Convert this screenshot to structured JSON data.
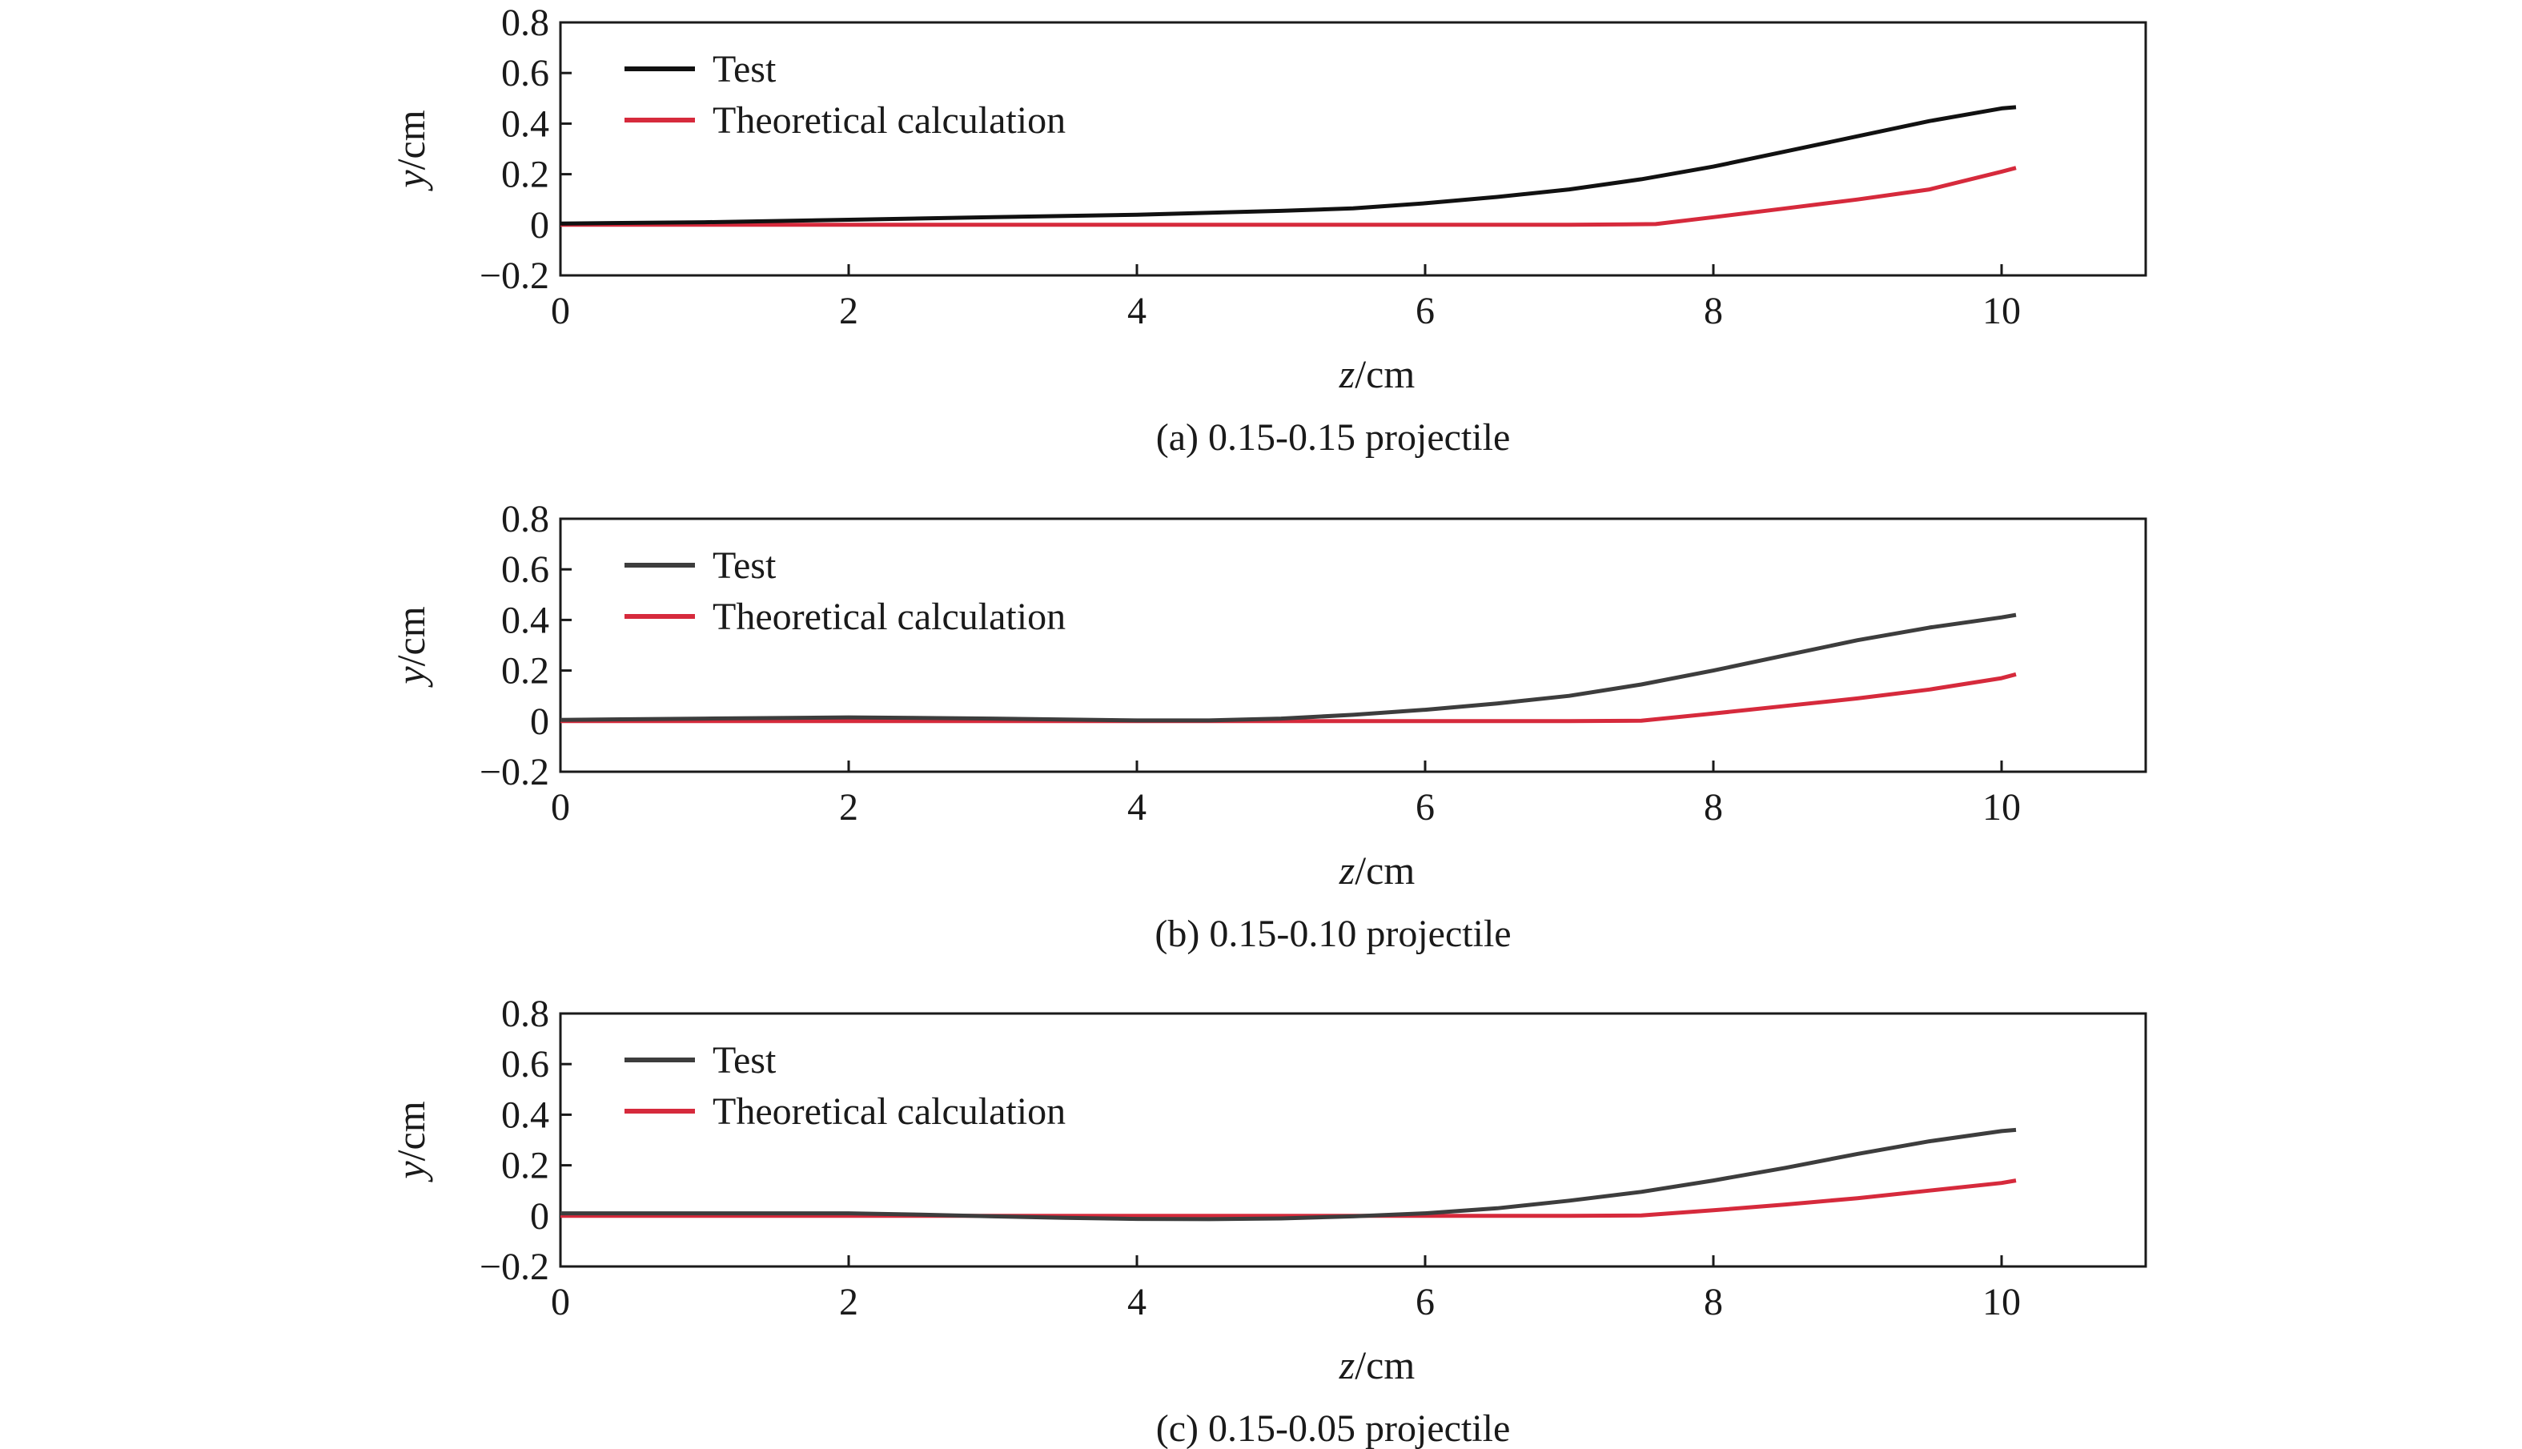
{
  "chart_data": [
    {
      "type": "line",
      "title": "(a) 0.15-0.15 projectile",
      "xlabel": {
        "italic": "z",
        "rest": "/cm"
      },
      "ylabel": {
        "italic": "y",
        "rest": "/cm"
      },
      "xlim": [
        0,
        11
      ],
      "ylim": [
        -0.2,
        0.8
      ],
      "xticks": [
        0,
        2,
        4,
        6,
        8,
        10
      ],
      "yticks": [
        -0.2,
        0,
        0.2,
        0.4,
        0.6,
        0.8
      ],
      "ytick_labels": [
        "−0.2",
        "0",
        "0.2",
        "0.4",
        "0.6",
        "0.8"
      ],
      "legend": "top-left",
      "grid": false,
      "series": [
        {
          "name": "Test",
          "color": "#111111",
          "x": [
            0,
            1,
            2,
            3,
            4,
            5,
            5.5,
            6,
            6.5,
            7,
            7.5,
            8,
            8.5,
            9,
            9.5,
            10,
            10.1
          ],
          "y": [
            0.005,
            0.01,
            0.02,
            0.03,
            0.04,
            0.055,
            0.065,
            0.085,
            0.11,
            0.14,
            0.18,
            0.23,
            0.29,
            0.35,
            0.41,
            0.46,
            0.465
          ]
        },
        {
          "name": "Theoretical calculation",
          "color": "#d62a3c",
          "x": [
            0,
            2,
            4,
            6,
            7,
            7.6,
            8,
            8.5,
            9,
            9.5,
            10,
            10.1
          ],
          "y": [
            0,
            0,
            0,
            0,
            0,
            0.003,
            0.03,
            0.065,
            0.1,
            0.14,
            0.21,
            0.225
          ]
        }
      ]
    },
    {
      "type": "line",
      "title": "(b) 0.15-0.10 projectile",
      "xlabel": {
        "italic": "z",
        "rest": "/cm"
      },
      "ylabel": {
        "italic": "y",
        "rest": "/cm"
      },
      "xlim": [
        0,
        11
      ],
      "ylim": [
        -0.2,
        0.8
      ],
      "xticks": [
        0,
        2,
        4,
        6,
        8,
        10
      ],
      "yticks": [
        -0.2,
        0,
        0.2,
        0.4,
        0.6,
        0.8
      ],
      "ytick_labels": [
        "−0.2",
        "0",
        "0.2",
        "0.4",
        "0.6",
        "0.8"
      ],
      "legend": "top-left",
      "grid": false,
      "series": [
        {
          "name": "Test",
          "color": "#3d3d3d",
          "x": [
            0,
            1,
            2,
            3,
            4,
            4.5,
            5,
            5.5,
            6,
            6.5,
            7,
            7.5,
            8,
            8.5,
            9,
            9.5,
            10,
            10.1
          ],
          "y": [
            0.005,
            0.01,
            0.015,
            0.01,
            0.003,
            0.003,
            0.01,
            0.025,
            0.045,
            0.07,
            0.1,
            0.145,
            0.2,
            0.26,
            0.32,
            0.37,
            0.41,
            0.42
          ]
        },
        {
          "name": "Theoretical calculation",
          "color": "#d62a3c",
          "x": [
            0,
            2,
            4,
            6,
            7,
            7.5,
            8,
            8.5,
            9,
            9.5,
            10,
            10.1
          ],
          "y": [
            0,
            0,
            0,
            0,
            0,
            0.002,
            0.03,
            0.06,
            0.09,
            0.125,
            0.17,
            0.185
          ]
        }
      ]
    },
    {
      "type": "line",
      "title": "(c) 0.15-0.05 projectile",
      "xlabel": {
        "italic": "z",
        "rest": "/cm"
      },
      "ylabel": {
        "italic": "y",
        "rest": "/cm"
      },
      "xlim": [
        0,
        11
      ],
      "ylim": [
        -0.2,
        0.8
      ],
      "xticks": [
        0,
        2,
        4,
        6,
        8,
        10
      ],
      "yticks": [
        -0.2,
        0,
        0.2,
        0.4,
        0.6,
        0.8
      ],
      "ytick_labels": [
        "−0.2",
        "0",
        "0.2",
        "0.4",
        "0.6",
        "0.8"
      ],
      "legend": "top-left",
      "grid": false,
      "series": [
        {
          "name": "Test",
          "color": "#3d3d3d",
          "x": [
            0,
            1,
            2,
            2.5,
            3,
            3.5,
            4,
            4.5,
            5,
            5.5,
            6,
            6.5,
            7,
            7.5,
            8,
            8.5,
            9,
            9.5,
            10,
            10.1
          ],
          "y": [
            0.01,
            0.01,
            0.01,
            0.005,
            -0.002,
            -0.008,
            -0.012,
            -0.013,
            -0.01,
            -0.002,
            0.01,
            0.03,
            0.06,
            0.095,
            0.14,
            0.19,
            0.245,
            0.295,
            0.335,
            0.34
          ]
        },
        {
          "name": "Theoretical calculation",
          "color": "#d62a3c",
          "x": [
            0,
            2,
            4,
            6,
            7,
            7.5,
            8,
            8.5,
            9,
            9.5,
            10,
            10.1
          ],
          "y": [
            0,
            0,
            0,
            0,
            0,
            0.002,
            0.022,
            0.045,
            0.07,
            0.1,
            0.13,
            0.14
          ]
        }
      ]
    }
  ]
}
